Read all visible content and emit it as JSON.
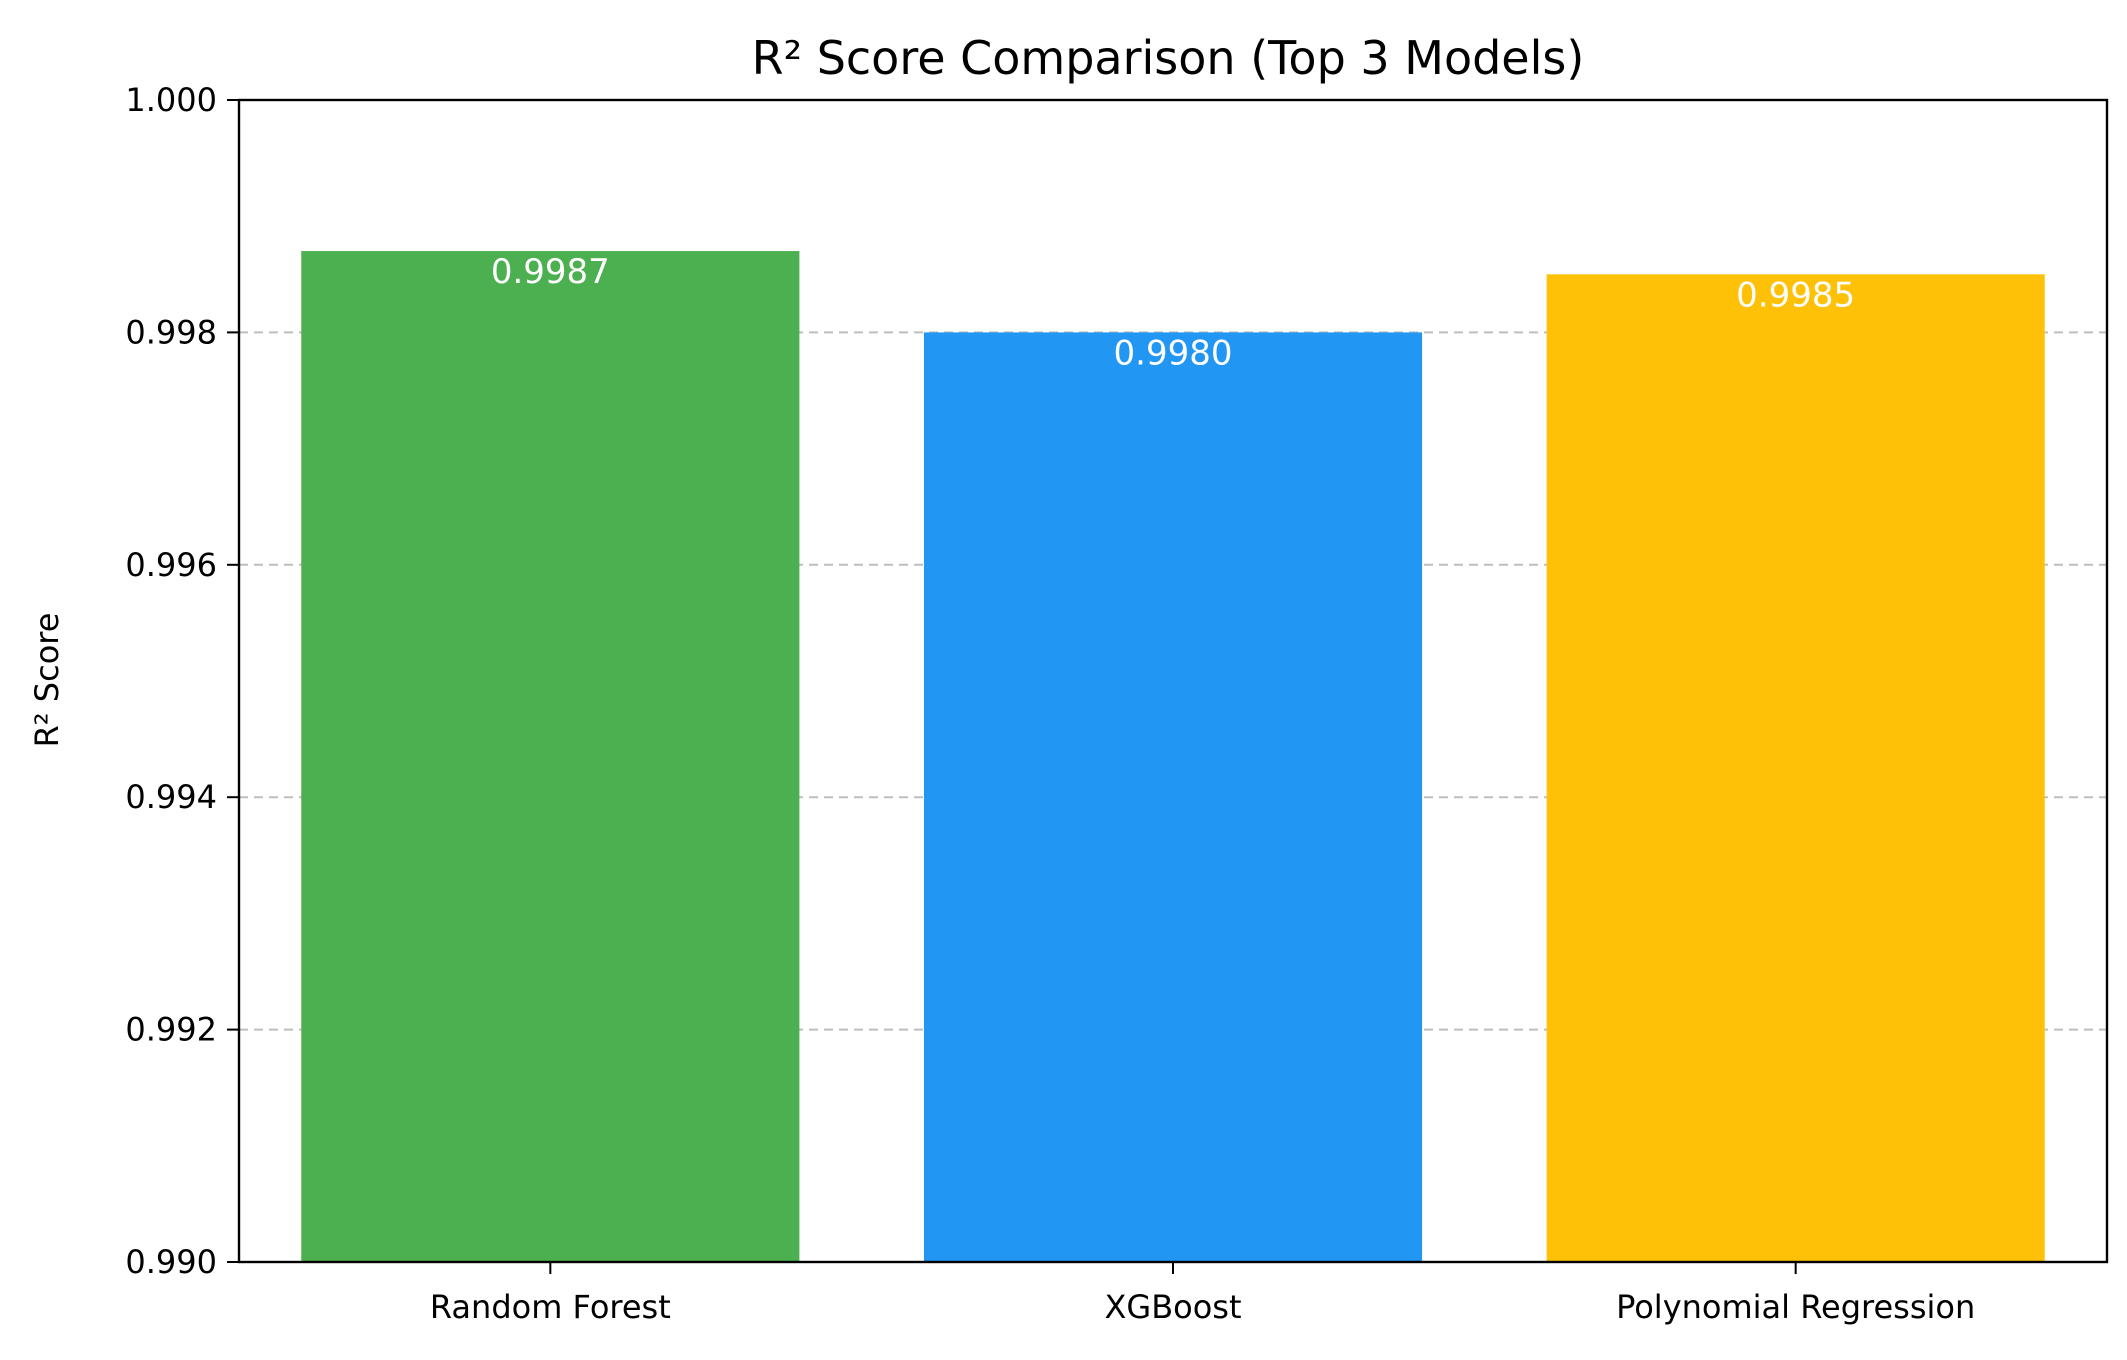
{
  "chart_data": {
    "type": "bar",
    "title": "R² Score Comparison (Top 3 Models)",
    "xlabel": "",
    "ylabel": "R² Score",
    "categories": [
      "Random Forest",
      "XGBoost",
      "Polynomial Regression"
    ],
    "values": [
      0.9987,
      0.998,
      0.9985
    ],
    "value_labels": [
      "0.9987",
      "0.9980",
      "0.9985"
    ],
    "colors": [
      "#4caf50",
      "#2196f3",
      "#ffc107"
    ],
    "ylim": [
      0.99,
      1.0
    ],
    "yticks": [
      0.99,
      0.992,
      0.994,
      0.996,
      0.998,
      1.0
    ],
    "ytick_labels": [
      "0.990",
      "0.992",
      "0.994",
      "0.996",
      "0.998",
      "1.000"
    ],
    "grid": "y-dashed",
    "legend": "none"
  }
}
